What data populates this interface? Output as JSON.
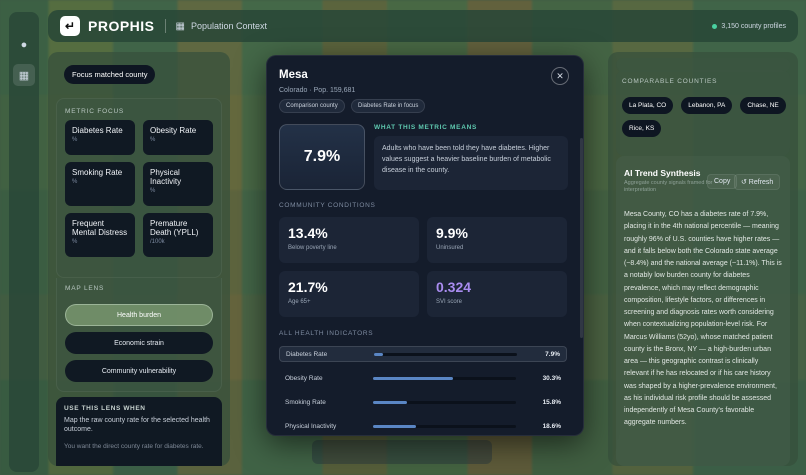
{
  "app": {
    "brand": "PROPHIS",
    "context": "Population Context",
    "profiles": "3,150 county profiles"
  },
  "left": {
    "focus_button": "Focus matched county",
    "metric_focus_label": "METRIC FOCUS",
    "metrics": [
      {
        "name": "Diabetes Rate",
        "unit": "%"
      },
      {
        "name": "Obesity Rate",
        "unit": "%"
      },
      {
        "name": "Smoking Rate",
        "unit": "%"
      },
      {
        "name": "Physical Inactivity",
        "unit": "%"
      },
      {
        "name": "Frequent Mental Distress",
        "unit": "%"
      },
      {
        "name": "Premature Death (YPLL)",
        "unit": "/100k"
      }
    ],
    "map_lens_label": "MAP LENS",
    "lenses": [
      "Health burden",
      "Economic strain",
      "Community vulnerability"
    ],
    "lens_info_title": "USE THIS LENS WHEN",
    "lens_info_desc": "Map the raw county rate for the selected health outcome.",
    "lens_info_alt": "You want the direct county rate for diabetes rate."
  },
  "modal": {
    "title": "Mesa",
    "subtitle": "Colorado · Pop. 159,681",
    "tags": [
      "Comparison county",
      "Diabetes Rate in focus"
    ],
    "value": "7.9%",
    "meaning_label": "WHAT THIS METRIC MEANS",
    "meaning_text": "Adults who have been told they have diabetes. Higher values suggest a heavier baseline burden of metabolic disease in the county.",
    "community_label": "COMMUNITY CONDITIONS",
    "stats": [
      {
        "value": "13.4%",
        "label": "Below poverty line"
      },
      {
        "value": "9.9%",
        "label": "Uninsured"
      },
      {
        "value": "21.7%",
        "label": "Age 65+"
      },
      {
        "value": "0.324",
        "label": "SVI score"
      }
    ],
    "indicators_label": "ALL HEALTH INDICATORS",
    "indicators": [
      {
        "name": "Diabetes Rate",
        "value": "7.9%",
        "fraction": 0.06
      },
      {
        "name": "Obesity Rate",
        "value": "30.3%",
        "fraction": 0.56
      },
      {
        "name": "Smoking Rate",
        "value": "15.8%",
        "fraction": 0.24
      },
      {
        "name": "Physical Inactivity",
        "value": "18.6%",
        "fraction": 0.3
      }
    ]
  },
  "right": {
    "comparable_label": "COMPARABLE COUNTIES",
    "chips": [
      "La Plata, CO",
      "Lebanon, PA",
      "Chase, NE",
      "Rice, KS"
    ],
    "ai_title": "AI Trend Synthesis",
    "ai_sub": "Aggregate county signals framed for interpretation",
    "copy": "Copy",
    "refresh": "↺ Refresh",
    "ai_body": "Mesa County, CO has a diabetes rate of 7.9%, placing it in the 4th national percentile — meaning roughly 96% of U.S. counties have higher rates — and it falls below both the Colorado state average (~8.4%) and the national average (~11.1%). This is a notably low burden county for diabetes prevalence, which may reflect demographic composition, lifestyle factors, or differences in screening and diagnosis rates worth considering when contextualizing population-level risk. For Marcus Williams (52yo), whose matched patient county is the Bronx, NY — a high-burden urban area — this geographic contrast is clinically relevant if he has relocated or if his care history was shaped by a higher-prevalence environment, as his individual risk profile should be assessed independently of Mesa County's favorable aggregate numbers."
  }
}
